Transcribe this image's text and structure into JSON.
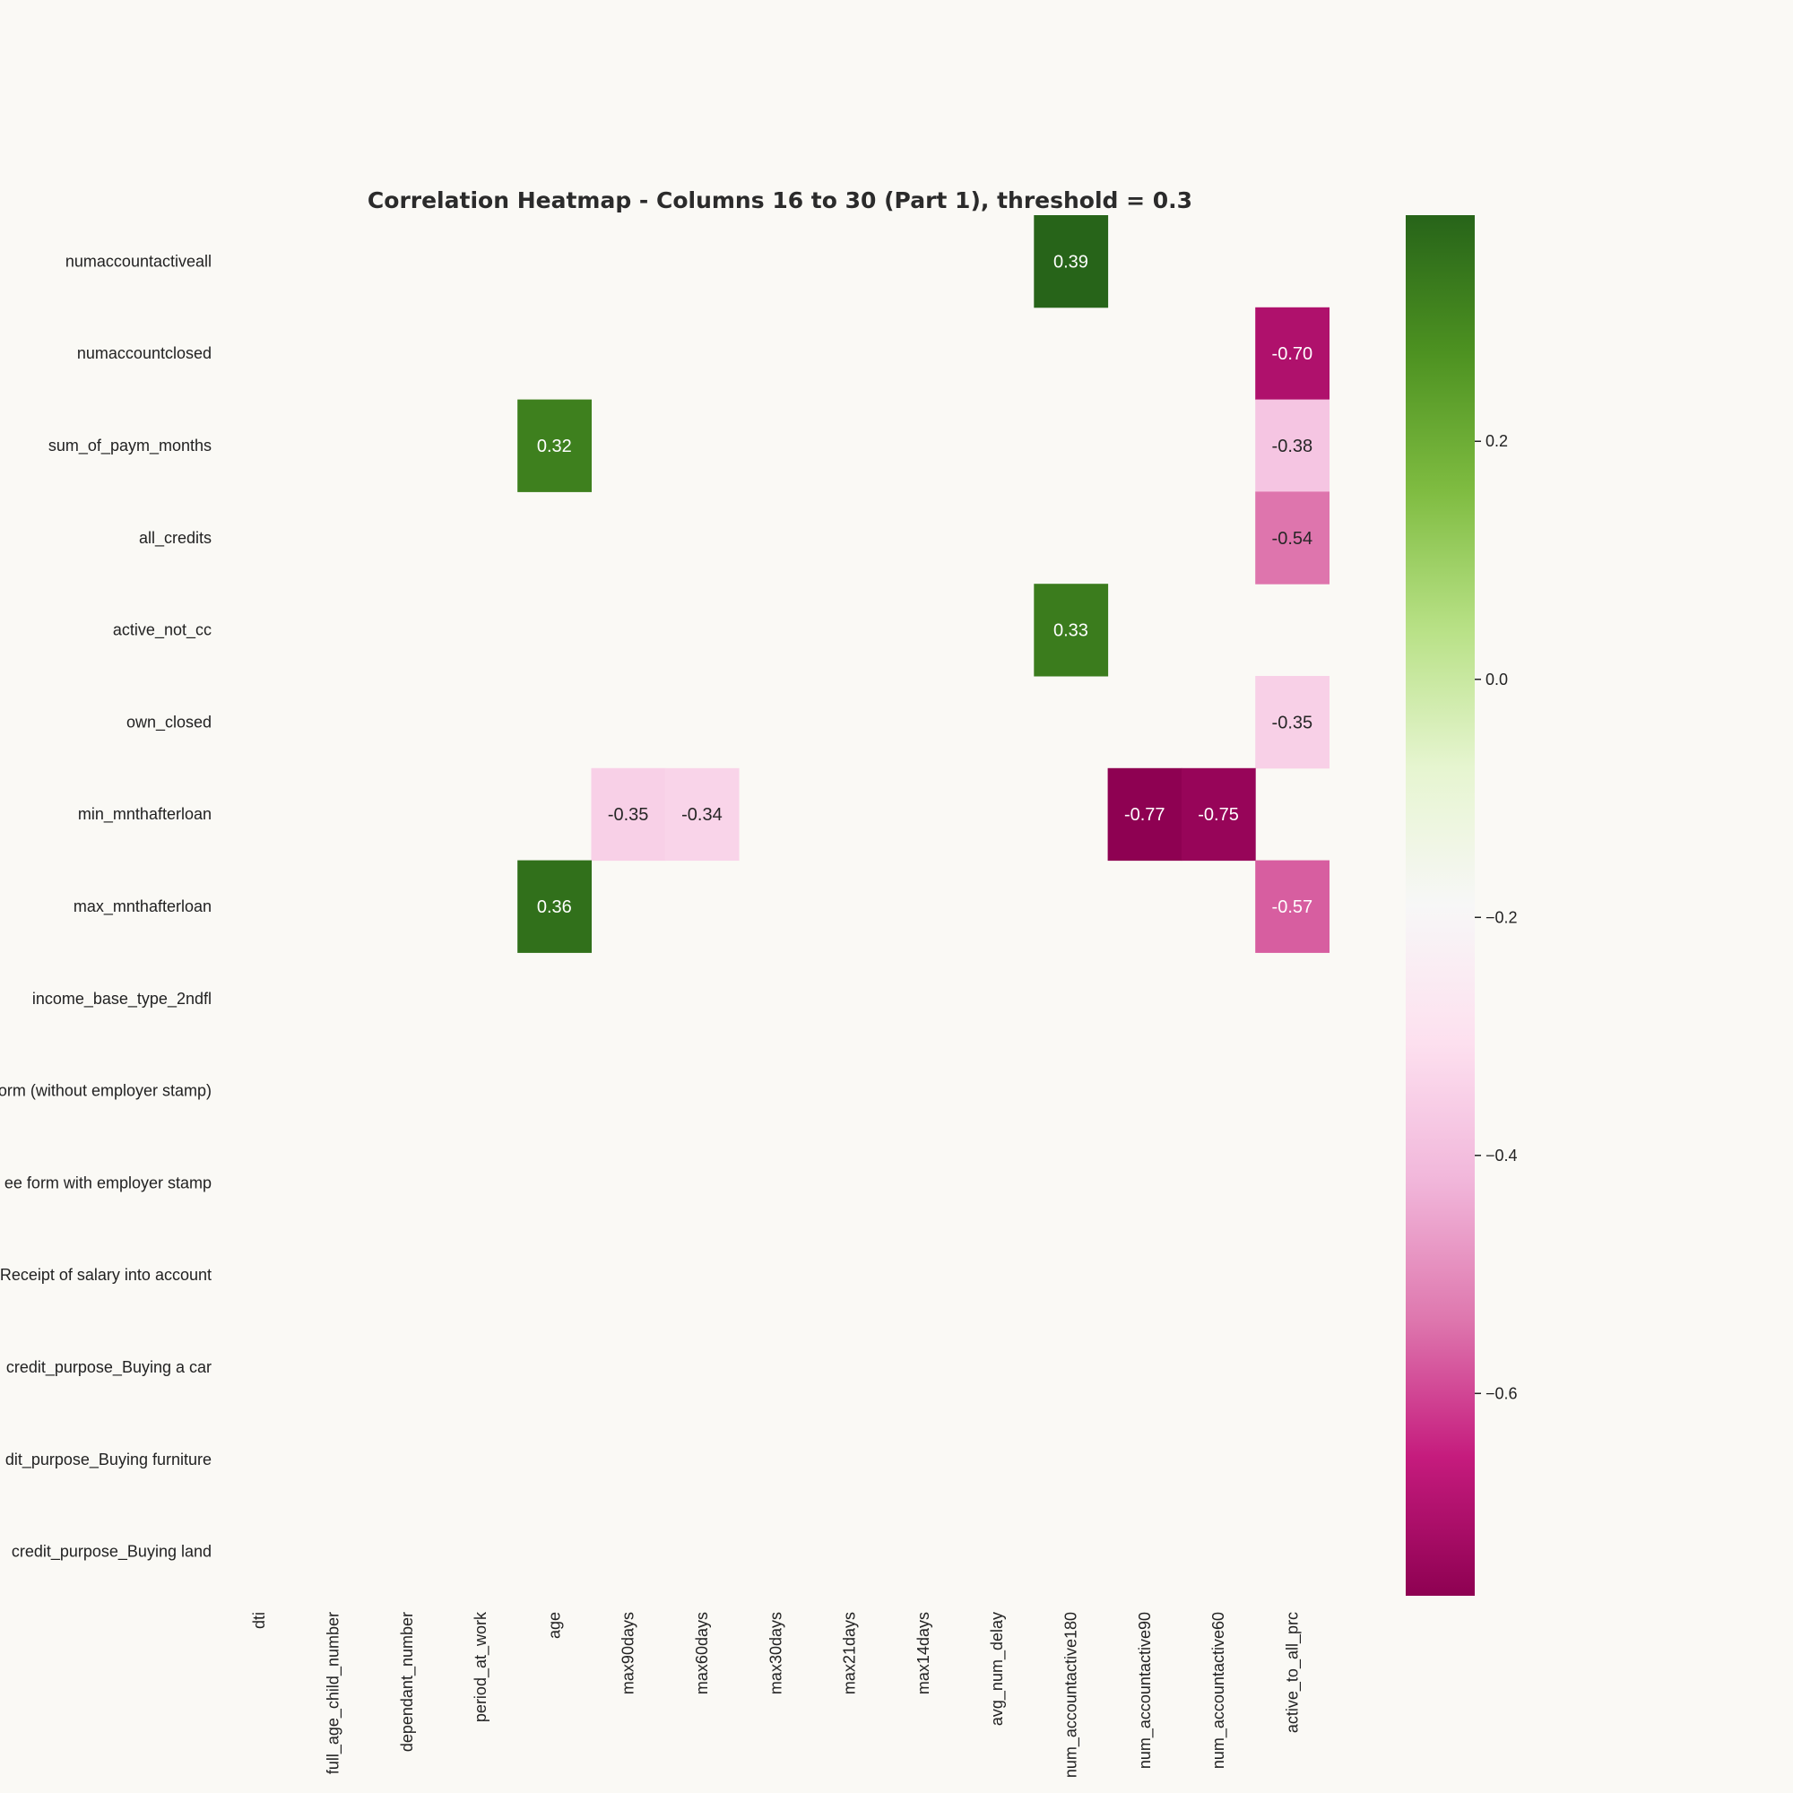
{
  "chart_data": {
    "type": "heatmap",
    "title": "Correlation Heatmap - Columns 16 to 30 (Part 1), threshold = 0.3",
    "rows": [
      "numaccountactiveall",
      "numaccountclosed",
      "sum_of_paym_months",
      "all_credits",
      "active_not_cc",
      "own_closed",
      "min_mnthafterloan",
      "max_mnthafterloan",
      "income_base_type_2ndfl",
      "orm (without employer stamp)",
      "ee form with employer stamp",
      "Receipt of salary into account",
      "credit_purpose_Buying a car",
      "dit_purpose_Buying furniture",
      "credit_purpose_Buying land"
    ],
    "columns": [
      "dti",
      "full_age_child_number",
      "dependant_number",
      "period_at_work",
      "age",
      "max90days",
      "max60days",
      "max30days",
      "max21days",
      "max14days",
      "avg_num_delay",
      "num_accountactive180",
      "num_accountactive90",
      "num_accountactive60",
      "active_to_all_prc"
    ],
    "cells": [
      {
        "row": 0,
        "col": 11,
        "value": 0.39,
        "label": "0.39"
      },
      {
        "row": 1,
        "col": 14,
        "value": -0.7,
        "label": "-0.70"
      },
      {
        "row": 2,
        "col": 4,
        "value": 0.32,
        "label": "0.32"
      },
      {
        "row": 2,
        "col": 14,
        "value": -0.38,
        "label": "-0.38"
      },
      {
        "row": 3,
        "col": 14,
        "value": -0.54,
        "label": "-0.54"
      },
      {
        "row": 4,
        "col": 11,
        "value": 0.33,
        "label": "0.33"
      },
      {
        "row": 5,
        "col": 14,
        "value": -0.35,
        "label": "-0.35"
      },
      {
        "row": 6,
        "col": 5,
        "value": -0.35,
        "label": "-0.35"
      },
      {
        "row": 6,
        "col": 6,
        "value": -0.34,
        "label": "-0.34"
      },
      {
        "row": 6,
        "col": 12,
        "value": -0.77,
        "label": "-0.77"
      },
      {
        "row": 6,
        "col": 13,
        "value": -0.75,
        "label": "-0.75"
      },
      {
        "row": 7,
        "col": 4,
        "value": 0.36,
        "label": "0.36"
      },
      {
        "row": 7,
        "col": 14,
        "value": -0.57,
        "label": "-0.57"
      }
    ],
    "colorbar": {
      "vmin": -0.77,
      "vmax": 0.39,
      "ticks": [
        0.2,
        0.0,
        -0.2,
        -0.4,
        -0.6
      ],
      "tick_labels": [
        "0.2",
        "0.0",
        "−0.2",
        "−0.4",
        "−0.6"
      ],
      "colormap": "PiYG"
    },
    "legend_position": "right",
    "grid": false
  }
}
